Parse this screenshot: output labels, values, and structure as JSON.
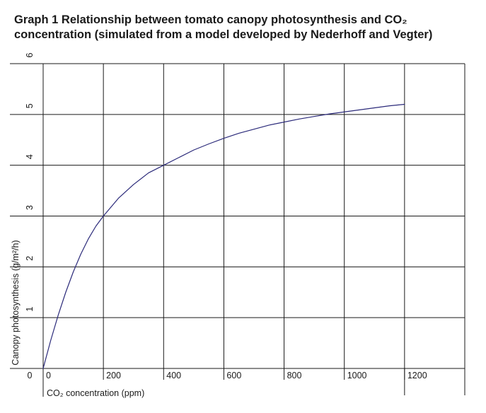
{
  "chart_data": {
    "type": "line",
    "title": "Graph 1  Relationship between tomato canopy photosynthesis and CO₂ concentration (simulated from a model developed by Nederhoff and Vegter)",
    "title_lines": [
      "Graph 1  Relationship between tomato canopy photosynthesis and CO₂",
      "concentration (simulated from a model developed by Nederhoff and Vegter)"
    ],
    "xlabel": "CO₂ concentration (ppm)",
    "ylabel": "Canopy photosynthesis (g/m²/h)",
    "xlim": [
      0,
      1400
    ],
    "ylim": [
      0,
      6
    ],
    "x_ticks": [
      0,
      200,
      400,
      600,
      800,
      1000,
      1200
    ],
    "x_tick_labels": [
      "0",
      "200",
      "400",
      "600",
      "800",
      "1000",
      "1200"
    ],
    "y_ticks": [
      0,
      1,
      2,
      3,
      4,
      5,
      6
    ],
    "y_tick_labels": [
      "0",
      "1",
      "2",
      "3",
      "4",
      "5",
      "6"
    ],
    "grid": true,
    "series": [
      {
        "name": "Canopy photosynthesis",
        "color": "#2b2a7a",
        "x": [
          0,
          25,
          50,
          75,
          100,
          125,
          150,
          175,
          200,
          250,
          300,
          350,
          400,
          450,
          500,
          550,
          600,
          650,
          700,
          750,
          800,
          850,
          900,
          950,
          1000,
          1050,
          1100,
          1150,
          1200
        ],
        "y": [
          0,
          0.55,
          1.05,
          1.5,
          1.9,
          2.25,
          2.55,
          2.8,
          3.0,
          3.35,
          3.62,
          3.85,
          4.0,
          4.15,
          4.3,
          4.42,
          4.53,
          4.63,
          4.71,
          4.79,
          4.85,
          4.91,
          4.96,
          5.01,
          5.05,
          5.09,
          5.13,
          5.17,
          5.2
        ]
      }
    ]
  }
}
